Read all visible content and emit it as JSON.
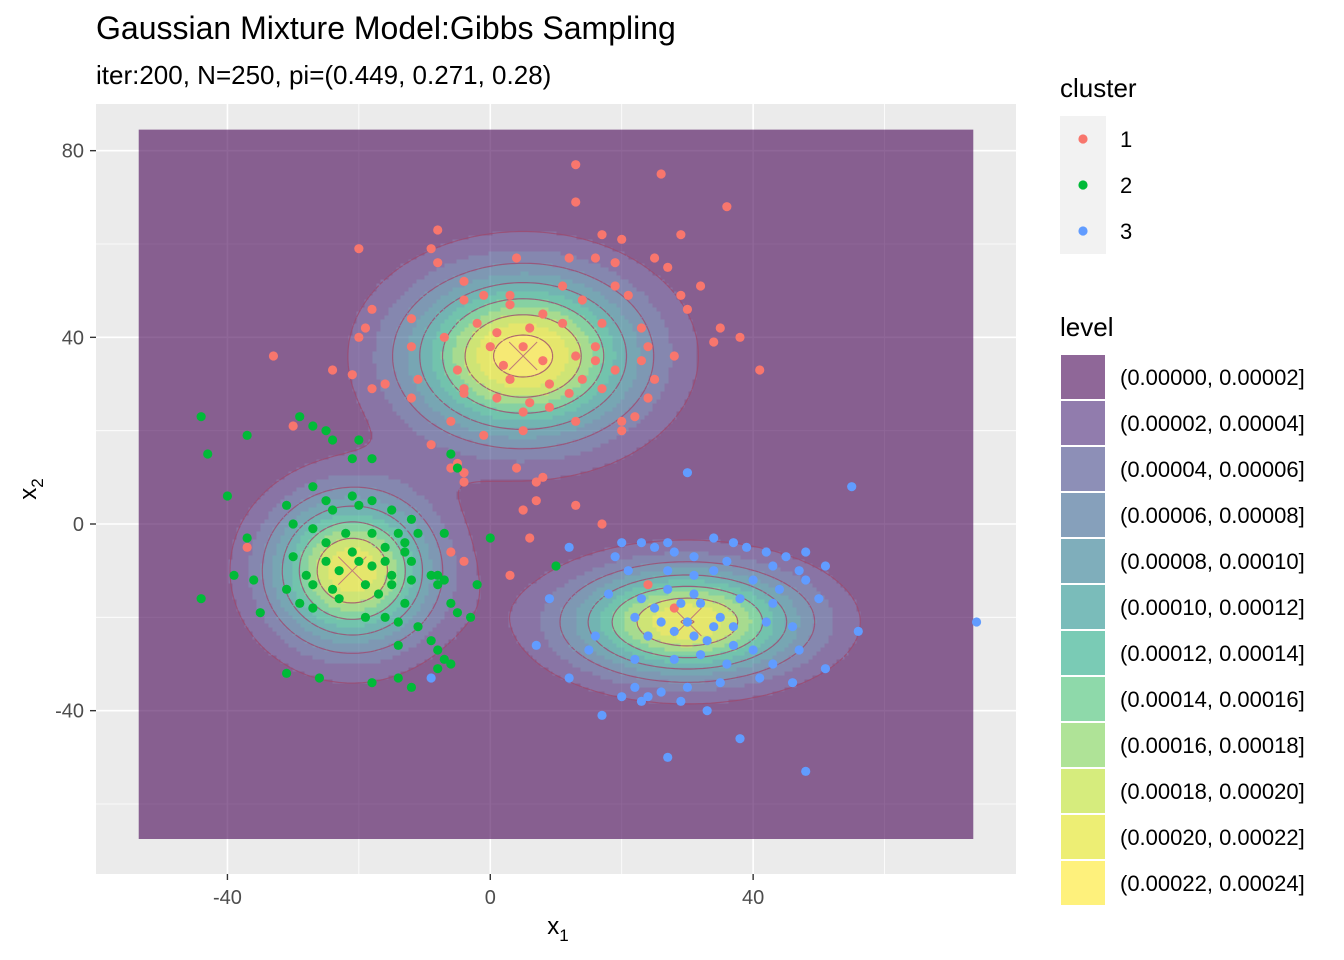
{
  "chart_data": {
    "type": "scatter",
    "title": "Gaussian Mixture Model:Gibbs Sampling",
    "subtitle": "iter:200, N=250, pi=(0.449, 0.271, 0.28)",
    "xlabel": "x",
    "xlabel_sub": "1",
    "ylabel": "x",
    "ylabel_sub": "2",
    "xlim": [
      -60,
      80
    ],
    "ylim": [
      -75,
      90
    ],
    "x_ticks": [
      -40,
      0,
      40
    ],
    "y_ticks": [
      -40,
      0,
      40,
      80
    ],
    "x_tick_labels": [
      "-40",
      "0",
      "40"
    ],
    "y_tick_labels": [
      "-40",
      "0",
      "40",
      "80"
    ],
    "grid": true,
    "legend_position": "right",
    "cluster_legend": {
      "title": "cluster",
      "entries": [
        {
          "label": "1",
          "color": "#F8766D"
        },
        {
          "label": "2",
          "color": "#00BA38"
        },
        {
          "label": "3",
          "color": "#619CFF"
        }
      ]
    },
    "level_legend": {
      "title": "level",
      "entries": [
        {
          "label": "(0.00000, 0.00002]",
          "color": "#440154"
        },
        {
          "label": "(0.00002, 0.00004]",
          "color": "#482576"
        },
        {
          "label": "(0.00004, 0.00006]",
          "color": "#414487"
        },
        {
          "label": "(0.00006, 0.00008]",
          "color": "#35608D"
        },
        {
          "label": "(0.00008, 0.00010]",
          "color": "#2A788E"
        },
        {
          "label": "(0.00010, 0.00012]",
          "color": "#21908C"
        },
        {
          "label": "(0.00012, 0.00014]",
          "color": "#22A884"
        },
        {
          "label": "(0.00014, 0.00016]",
          "color": "#43BF71"
        },
        {
          "label": "(0.00016, 0.00018]",
          "color": "#7AD151"
        },
        {
          "label": "(0.00018, 0.00020]",
          "color": "#BBDF27"
        },
        {
          "label": "(0.00020, 0.00022]",
          "color": "#E1E318"
        },
        {
          "label": "(0.00022, 0.00024]",
          "color": "#FDE725"
        }
      ]
    },
    "density_extent": {
      "x": [
        -53.5,
        73.5
      ],
      "y": [
        -67.5,
        84.5
      ]
    },
    "components": [
      {
        "cluster": "1",
        "mean": [
          5,
          36
        ],
        "sd": [
          12,
          12
        ],
        "weight": 0.449
      },
      {
        "cluster": "2",
        "mean": [
          -21,
          -10
        ],
        "sd": [
          8.5,
          11
        ],
        "weight": 0.271
      },
      {
        "cluster": "3",
        "mean": [
          30,
          -21
        ],
        "sd": [
          12,
          8
        ],
        "weight": 0.28
      }
    ],
    "series": [
      {
        "name": "1",
        "color": "#F8766D",
        "points": [
          [
            13,
            77
          ],
          [
            26,
            75
          ],
          [
            13,
            69
          ],
          [
            36,
            68
          ],
          [
            -8,
            63
          ],
          [
            -9,
            59
          ],
          [
            17,
            62
          ],
          [
            20,
            61
          ],
          [
            29,
            62
          ],
          [
            -20,
            59
          ],
          [
            -8,
            56
          ],
          [
            4,
            57
          ],
          [
            12,
            57
          ],
          [
            16,
            57
          ],
          [
            25,
            57
          ],
          [
            19,
            56
          ],
          [
            27,
            55
          ],
          [
            -4,
            52
          ],
          [
            -1,
            49
          ],
          [
            11,
            51
          ],
          [
            19,
            51
          ],
          [
            29,
            49
          ],
          [
            -18,
            46
          ],
          [
            -4,
            48
          ],
          [
            3,
            49
          ],
          [
            14,
            48
          ],
          [
            21,
            49
          ],
          [
            32,
            51
          ],
          [
            -12,
            44
          ],
          [
            -2,
            43
          ],
          [
            3,
            47
          ],
          [
            8,
            45
          ],
          [
            17,
            43
          ],
          [
            30,
            46
          ],
          [
            -19,
            42
          ],
          [
            -7,
            40
          ],
          [
            1,
            41
          ],
          [
            6,
            42
          ],
          [
            11,
            43
          ],
          [
            23,
            42
          ],
          [
            35,
            42
          ],
          [
            -33,
            36
          ],
          [
            -20,
            40
          ],
          [
            -12,
            38
          ],
          [
            0,
            38
          ],
          [
            5,
            38
          ],
          [
            13,
            36
          ],
          [
            16,
            38
          ],
          [
            24,
            38
          ],
          [
            34,
            39
          ],
          [
            38,
            40
          ],
          [
            -24,
            33
          ],
          [
            -21,
            32
          ],
          [
            -5,
            33
          ],
          [
            2,
            34
          ],
          [
            8,
            35
          ],
          [
            16,
            35
          ],
          [
            23,
            35
          ],
          [
            28,
            36
          ],
          [
            41,
            33
          ],
          [
            -16,
            30
          ],
          [
            -11,
            31
          ],
          [
            -4,
            29
          ],
          [
            3,
            31
          ],
          [
            9,
            30
          ],
          [
            14,
            31
          ],
          [
            19,
            33
          ],
          [
            25,
            31
          ],
          [
            -18,
            29
          ],
          [
            -4,
            28
          ],
          [
            1,
            27
          ],
          [
            6,
            26
          ],
          [
            12,
            28
          ],
          [
            17,
            29
          ],
          [
            -12,
            27
          ],
          [
            5,
            24
          ],
          [
            9,
            25
          ],
          [
            -30,
            21
          ],
          [
            -6,
            22
          ],
          [
            13,
            22
          ],
          [
            20,
            22
          ],
          [
            -1,
            19
          ],
          [
            5,
            20
          ],
          [
            20,
            20
          ],
          [
            22,
            23
          ],
          [
            24,
            27
          ],
          [
            -9,
            17
          ],
          [
            -5,
            13
          ],
          [
            -6,
            12
          ],
          [
            -4,
            11
          ],
          [
            -4,
            9
          ],
          [
            4,
            12
          ],
          [
            7,
            9
          ],
          [
            8,
            10
          ],
          [
            7,
            5
          ],
          [
            13,
            4
          ],
          [
            5,
            3
          ],
          [
            17,
            0
          ],
          [
            -37,
            -5
          ],
          [
            -6,
            -6
          ],
          [
            -4,
            -8
          ],
          [
            6,
            -3
          ],
          [
            3,
            -11
          ],
          [
            24,
            -13
          ],
          [
            28,
            -18
          ]
        ]
      },
      {
        "cluster": "2",
        "color": "#00BA38",
        "points": [
          [
            -44,
            23
          ],
          [
            -43,
            15
          ],
          [
            -37,
            19
          ],
          [
            -29,
            23
          ],
          [
            -27,
            21
          ],
          [
            -25,
            20
          ],
          [
            -24,
            18
          ],
          [
            -21,
            14
          ],
          [
            -20,
            18
          ],
          [
            -18,
            14
          ],
          [
            -6,
            15
          ],
          [
            -5,
            12
          ],
          [
            -40,
            6
          ],
          [
            -31,
            4
          ],
          [
            -27,
            8
          ],
          [
            -25,
            5
          ],
          [
            -24,
            3
          ],
          [
            -21,
            6
          ],
          [
            -20,
            4
          ],
          [
            -18,
            5
          ],
          [
            -15,
            3
          ],
          [
            -12,
            1
          ],
          [
            -30,
            0
          ],
          [
            -27,
            -1
          ],
          [
            -22,
            -2
          ],
          [
            -18,
            -2
          ],
          [
            -14,
            -2
          ],
          [
            -11,
            -2
          ],
          [
            -7,
            -2
          ],
          [
            -37,
            -3
          ],
          [
            -25,
            -4
          ],
          [
            -21,
            -6
          ],
          [
            -16,
            -5
          ],
          [
            -13,
            -4
          ],
          [
            -30,
            -7
          ],
          [
            -25,
            -8
          ],
          [
            -20,
            -8
          ],
          [
            -16,
            -8
          ],
          [
            -13,
            -6
          ],
          [
            -28,
            -11
          ],
          [
            -23,
            -10
          ],
          [
            -18,
            -9
          ],
          [
            -15,
            -11
          ],
          [
            -12,
            -8
          ],
          [
            -8,
            -11
          ],
          [
            -39,
            -11
          ],
          [
            -36,
            -12
          ],
          [
            -27,
            -13
          ],
          [
            -24,
            -14
          ],
          [
            -19,
            -13
          ],
          [
            -15,
            -13
          ],
          [
            -12,
            -12
          ],
          [
            -9,
            -11
          ],
          [
            -7,
            -12
          ],
          [
            -31,
            -14
          ],
          [
            -29,
            -17
          ],
          [
            -23,
            -16
          ],
          [
            -17,
            -15
          ],
          [
            -13,
            -17
          ],
          [
            -8,
            -13
          ],
          [
            -6,
            -17
          ],
          [
            -44,
            -16
          ],
          [
            -35,
            -19
          ],
          [
            -27,
            -18
          ],
          [
            -19,
            -20
          ],
          [
            -16,
            -20
          ],
          [
            -14,
            -21
          ],
          [
            -11,
            -22
          ],
          [
            -5,
            -19
          ],
          [
            -3,
            -20
          ],
          [
            -9,
            -25
          ],
          [
            -8,
            -27
          ],
          [
            -14,
            -26
          ],
          [
            -7,
            -29
          ],
          [
            -6,
            -30
          ],
          [
            -8,
            -31
          ],
          [
            -31,
            -32
          ],
          [
            -26,
            -33
          ],
          [
            -18,
            -34
          ],
          [
            -14,
            -33
          ],
          [
            -12,
            -35
          ],
          [
            -2,
            -13
          ],
          [
            0,
            -3
          ],
          [
            10,
            -9
          ]
        ]
      },
      {
        "cluster": "3",
        "color": "#619CFF",
        "points": [
          [
            30,
            11
          ],
          [
            55,
            8
          ],
          [
            12,
            -5
          ],
          [
            20,
            -4
          ],
          [
            23,
            -4
          ],
          [
            25,
            -5
          ],
          [
            27,
            -4
          ],
          [
            34,
            -3
          ],
          [
            37,
            -4
          ],
          [
            39,
            -5
          ],
          [
            42,
            -6
          ],
          [
            45,
            -7
          ],
          [
            48,
            -6
          ],
          [
            19,
            -7
          ],
          [
            28,
            -6
          ],
          [
            31,
            -7
          ],
          [
            36,
            -8
          ],
          [
            43,
            -9
          ],
          [
            47,
            -10
          ],
          [
            51,
            -9
          ],
          [
            21,
            -10
          ],
          [
            27,
            -10
          ],
          [
            31,
            -11
          ],
          [
            34,
            -10
          ],
          [
            40,
            -12
          ],
          [
            44,
            -14
          ],
          [
            48,
            -12
          ],
          [
            9,
            -16
          ],
          [
            18,
            -15
          ],
          [
            23,
            -16
          ],
          [
            27,
            -14
          ],
          [
            31,
            -15
          ],
          [
            38,
            -16
          ],
          [
            43,
            -17
          ],
          [
            50,
            -16
          ],
          [
            25,
            -18
          ],
          [
            29,
            -17
          ],
          [
            32,
            -17
          ],
          [
            35,
            -20
          ],
          [
            22,
            -20
          ],
          [
            26,
            -21
          ],
          [
            30,
            -21
          ],
          [
            34,
            -22
          ],
          [
            37,
            -22
          ],
          [
            42,
            -21
          ],
          [
            46,
            -22
          ],
          [
            56,
            -23
          ],
          [
            74,
            -21
          ],
          [
            16,
            -24
          ],
          [
            24,
            -24
          ],
          [
            28,
            -23
          ],
          [
            31,
            -24
          ],
          [
            33,
            -25
          ],
          [
            37,
            -26
          ],
          [
            40,
            -27
          ],
          [
            47,
            -27
          ],
          [
            7,
            -26
          ],
          [
            15,
            -27
          ],
          [
            22,
            -29
          ],
          [
            28,
            -29
          ],
          [
            32,
            -28
          ],
          [
            36,
            -30
          ],
          [
            43,
            -30
          ],
          [
            51,
            -31
          ],
          [
            12,
            -33
          ],
          [
            22,
            -35
          ],
          [
            26,
            -36
          ],
          [
            30,
            -35
          ],
          [
            35,
            -34
          ],
          [
            41,
            -33
          ],
          [
            46,
            -34
          ],
          [
            20,
            -37
          ],
          [
            23,
            -38
          ],
          [
            24,
            -37
          ],
          [
            29,
            -38
          ],
          [
            33,
            -40
          ],
          [
            17,
            -41
          ],
          [
            38,
            -46
          ],
          [
            27,
            -50
          ],
          [
            48,
            -53
          ],
          [
            -9,
            -33
          ]
        ]
      }
    ]
  }
}
